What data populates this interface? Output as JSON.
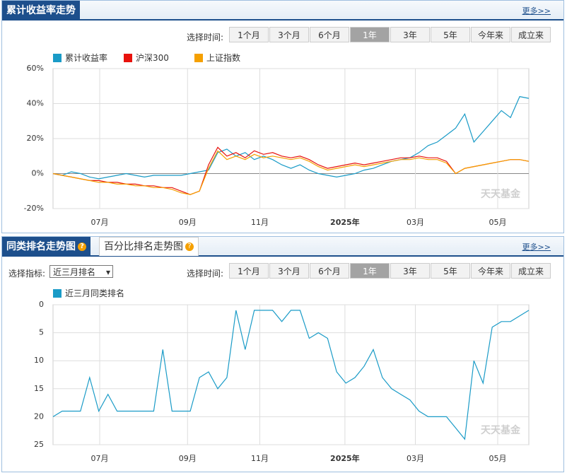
{
  "ui": {
    "panel1_title": "累计收益率走势",
    "more": "更多>>",
    "time_label": "选择时间:",
    "buttons": [
      "1个月",
      "3个月",
      "6个月",
      "1年",
      "3年",
      "5年",
      "今年来",
      "成立来"
    ],
    "selected": 3,
    "panel2_tabs": [
      "同类排名走势图",
      "百分比排名走势图"
    ],
    "indicator_label": "选择指标:",
    "indicator_option": "近三月排名",
    "watermark": "天天基金"
  },
  "chart_data": [
    {
      "type": "line",
      "x": [
        0,
        1,
        2,
        3,
        4,
        5,
        6,
        7,
        8,
        9,
        10,
        11,
        12,
        13,
        14,
        15,
        16,
        17,
        18,
        19,
        20,
        21,
        22,
        23,
        24,
        25,
        26,
        27,
        28,
        29,
        30,
        31,
        32,
        33,
        34,
        35,
        36,
        37,
        38,
        39,
        40,
        41,
        42,
        43,
        44,
        45,
        46,
        47,
        48,
        49,
        50,
        51,
        52
      ],
      "xlim": [
        0,
        52
      ],
      "xticks": [
        {
          "value": 5.1,
          "label": "07月"
        },
        {
          "value": 14.7,
          "label": "09月"
        },
        {
          "value": 22.6,
          "label": "11月"
        },
        {
          "value": 31.9,
          "label": "2025年"
        },
        {
          "value": 39.6,
          "label": "03月"
        },
        {
          "value": 48.6,
          "label": "05月"
        }
      ],
      "ylim": [
        -20,
        60
      ],
      "yticks": [
        {
          "value": 60,
          "label": "60%"
        },
        {
          "value": 40,
          "label": "40%"
        },
        {
          "value": 20,
          "label": "20%"
        },
        {
          "value": 0,
          "label": "0%"
        },
        {
          "value": -20,
          "label": "-20%"
        }
      ],
      "grid": true,
      "series": [
        {
          "name": "累计收益率",
          "color": "#1a9bc7",
          "values": [
            0,
            -1,
            1,
            0,
            -2,
            -3,
            -2,
            -1,
            0,
            -1,
            -2,
            -1,
            -1,
            -1,
            -1,
            0,
            1,
            2,
            12,
            14,
            10,
            12,
            8,
            10,
            8,
            5,
            3,
            5,
            2,
            0,
            -1,
            -2,
            -1,
            0,
            2,
            3,
            5,
            7,
            8,
            9,
            12,
            16,
            18,
            22,
            26,
            34,
            18,
            24,
            30,
            36,
            32,
            44,
            43
          ]
        },
        {
          "name": "沪深300",
          "color": "#e8120c",
          "values": [
            0,
            -1,
            -2,
            -3,
            -4,
            -4,
            -5,
            -5,
            -6,
            -6,
            -7,
            -7,
            -8,
            -8,
            -10,
            -12,
            -10,
            5,
            15,
            10,
            12,
            9,
            13,
            11,
            12,
            10,
            9,
            10,
            8,
            5,
            3,
            4,
            5,
            6,
            5,
            6,
            7,
            8,
            9,
            9,
            10,
            9,
            9,
            7,
            0,
            3,
            4,
            5,
            6,
            7,
            8,
            8,
            7
          ]
        },
        {
          "name": "上证指数",
          "color": "#f5a000",
          "values": [
            0,
            -1,
            -2,
            -3,
            -4,
            -5,
            -5,
            -6,
            -6,
            -7,
            -7,
            -8,
            -8,
            -9,
            -11,
            -12,
            -10,
            3,
            13,
            8,
            10,
            8,
            11,
            9,
            10,
            9,
            8,
            9,
            7,
            4,
            2,
            3,
            4,
            5,
            4,
            5,
            6,
            7,
            8,
            8,
            9,
            8,
            8,
            6,
            0,
            3,
            4,
            5,
            6,
            7,
            8,
            8,
            7
          ]
        }
      ]
    },
    {
      "type": "line",
      "x": [
        0,
        1,
        2,
        3,
        4,
        5,
        6,
        7,
        8,
        9,
        10,
        11,
        12,
        13,
        14,
        15,
        16,
        17,
        18,
        19,
        20,
        21,
        22,
        23,
        24,
        25,
        26,
        27,
        28,
        29,
        30,
        31,
        32,
        33,
        34,
        35,
        36,
        37,
        38,
        39,
        40,
        41,
        42,
        43,
        44,
        45,
        46,
        47,
        48,
        49,
        50,
        51,
        52
      ],
      "xlim": [
        0,
        52
      ],
      "xticks": [
        {
          "value": 5.1,
          "label": "07月"
        },
        {
          "value": 14.7,
          "label": "09月"
        },
        {
          "value": 22.6,
          "label": "11月"
        },
        {
          "value": 31.9,
          "label": "2025年"
        },
        {
          "value": 39.6,
          "label": "03月"
        },
        {
          "value": 48.6,
          "label": "05月"
        }
      ],
      "ylim": [
        0,
        25
      ],
      "y_inverted": true,
      "yticks": [
        0,
        5,
        10,
        15,
        20,
        25
      ],
      "grid": true,
      "series": [
        {
          "name": "近三月同类排名",
          "color": "#1a9bc7",
          "values": [
            20,
            19,
            19,
            19,
            13,
            19,
            16,
            19,
            19,
            19,
            19,
            19,
            8,
            19,
            19,
            19,
            13,
            12,
            15,
            13,
            1,
            8,
            1,
            1,
            1,
            3,
            1,
            1,
            6,
            5,
            6,
            12,
            14,
            13,
            11,
            8,
            13,
            15,
            16,
            17,
            19,
            20,
            20,
            20,
            22,
            24,
            10,
            14,
            4,
            3,
            3,
            2,
            1
          ]
        }
      ]
    }
  ]
}
